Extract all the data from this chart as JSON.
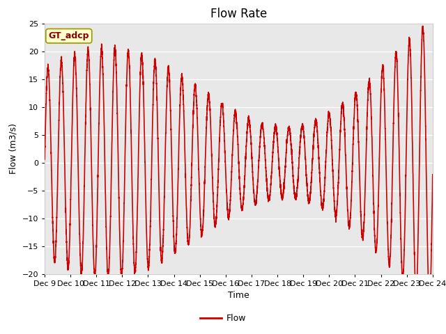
{
  "title": "Flow Rate",
  "xlabel": "Time",
  "ylabel": "Flow (m3/s)",
  "legend_label": "Flow",
  "annotation_text": "GT_adcp",
  "ylim": [
    -20,
    25
  ],
  "xtick_labels": [
    "Dec 9",
    "Dec 10",
    "Dec 11",
    "Dec 12",
    "Dec 13",
    "Dec 14",
    "Dec 15",
    "Dec 16",
    "Dec 17",
    "Dec 18",
    "Dec 19",
    "Dec 20",
    "Dec 21",
    "Dec 22",
    "Dec 23",
    "Dec 24"
  ],
  "ytick_positions": [
    -20,
    -15,
    -10,
    -5,
    0,
    5,
    10,
    15,
    20,
    25
  ],
  "line_color": "#cc0000",
  "line_width": 1.2,
  "fig_bg_color": "#ffffff",
  "plot_bg_color": "#e8e8e8",
  "title_fontsize": 12,
  "axis_label_fontsize": 9,
  "tick_fontsize": 8,
  "annotation_bgcolor": "#ffffcc",
  "annotation_edgecolor": "#999900",
  "annotation_fontsize": 9,
  "annotation_fontweight": "bold",
  "grid_color": "#ffffff",
  "grid_linewidth": 1.0,
  "n_points": 5000,
  "tidal_period_days": 0.5175,
  "spring_neap_period_days": 14.77
}
